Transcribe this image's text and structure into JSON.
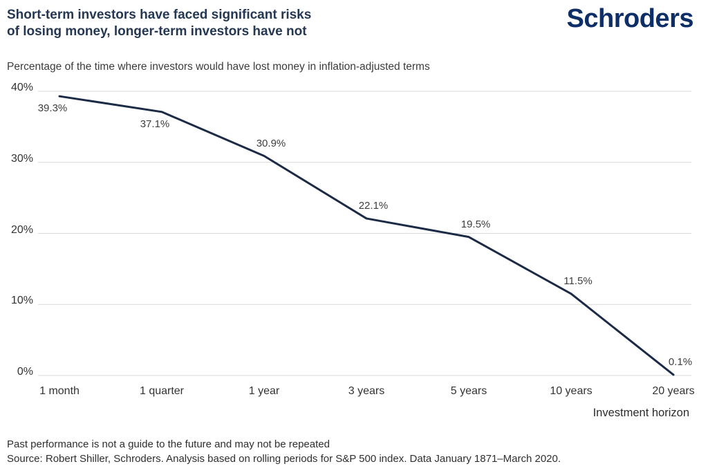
{
  "header": {
    "title_line1": "Short-term investors have faced significant risks",
    "title_line2": "of losing money, longer-term investors have not",
    "logo": "Schroders"
  },
  "subtitle": "Percentage of the time where investors would have lost money in inflation-adjusted terms",
  "chart_data": {
    "type": "line",
    "title": "Percentage of the time where investors would have lost money in inflation-adjusted terms",
    "categories": [
      "1 month",
      "1 quarter",
      "1 year",
      "3 years",
      "5 years",
      "10 years",
      "20 years"
    ],
    "values": [
      39.3,
      37.1,
      30.9,
      22.1,
      19.5,
      11.5,
      0.1
    ],
    "value_labels": [
      "39.3%",
      "37.1%",
      "30.9%",
      "22.1%",
      "19.5%",
      "11.5%",
      "0.1%"
    ],
    "xlabel": "Investment horizon",
    "ylabel": "",
    "ylim": [
      0,
      40
    ],
    "yticks": [
      "0%",
      "10%",
      "20%",
      "30%",
      "40%"
    ],
    "grid": true,
    "legend": "none"
  },
  "footer": {
    "line1": "Past performance is not a guide to the future and may not be repeated",
    "line2": "Source: Robert Shiller, Schroders. Analysis based on rolling periods for S&P 500 index. Data January 1871–March 2020."
  },
  "colors": {
    "title_navy": "#243753",
    "logo_blue": "#0d2e66",
    "line_navy": "#1c2b45",
    "grid_gray": "#d9d9d9",
    "text_gray": "#333333"
  }
}
